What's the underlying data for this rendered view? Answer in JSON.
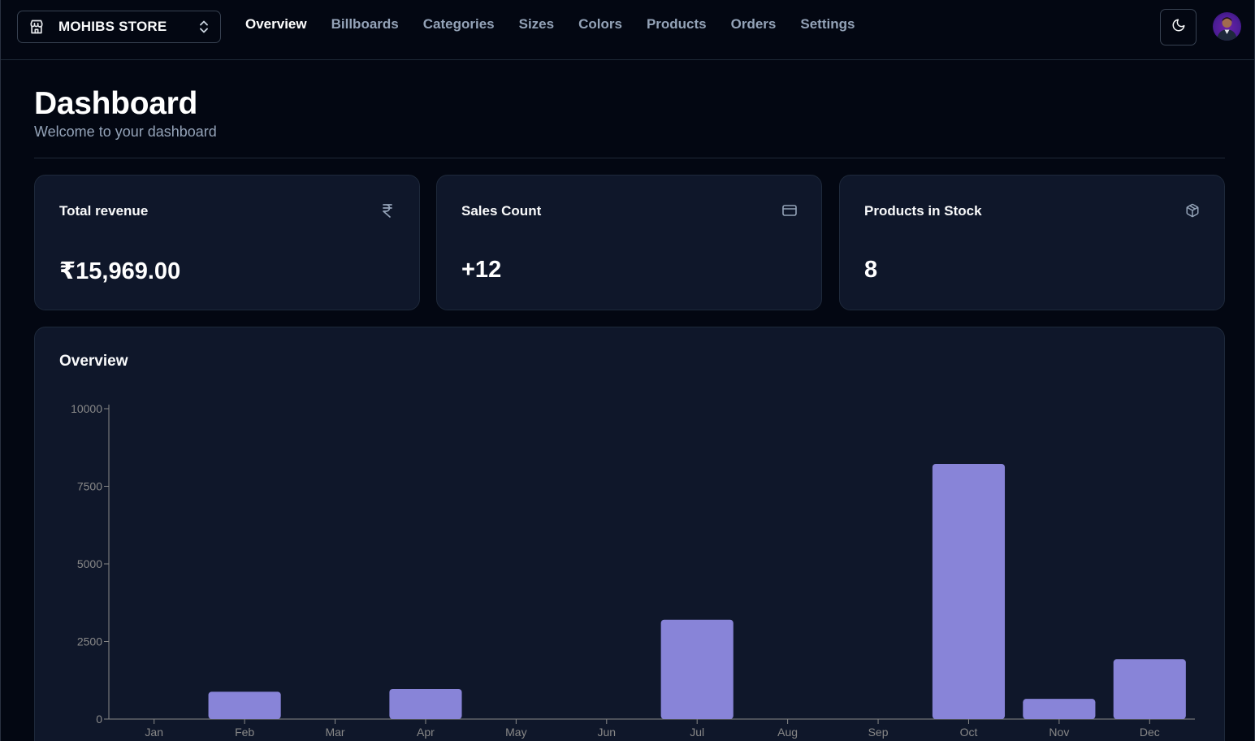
{
  "navbar": {
    "store_name": "MOHIBS STORE",
    "links": [
      {
        "label": "Overview",
        "active": true
      },
      {
        "label": "Billboards",
        "active": false
      },
      {
        "label": "Categories",
        "active": false
      },
      {
        "label": "Sizes",
        "active": false
      },
      {
        "label": "Colors",
        "active": false
      },
      {
        "label": "Products",
        "active": false
      },
      {
        "label": "Orders",
        "active": false
      },
      {
        "label": "Settings",
        "active": false
      }
    ],
    "theme_icon": "moon-icon",
    "avatar_icon": "user-avatar"
  },
  "page": {
    "title": "Dashboard",
    "subtitle": "Welcome to your dashboard"
  },
  "stats": [
    {
      "label": "Total revenue",
      "value": "₹15,969.00",
      "icon": "rupee-icon"
    },
    {
      "label": "Sales Count",
      "value": "+12",
      "icon": "credit-card-icon"
    },
    {
      "label": "Products in Stock",
      "value": "8",
      "icon": "package-icon"
    }
  ],
  "overview": {
    "title": "Overview"
  },
  "colors": {
    "background": "#030712",
    "card": "#0f172a",
    "bar": "#8884d8",
    "muted_text": "#94a3b8"
  },
  "chart_data": {
    "type": "bar",
    "categories": [
      "Jan",
      "Feb",
      "Mar",
      "Apr",
      "May",
      "Jun",
      "Jul",
      "Aug",
      "Sep",
      "Oct",
      "Nov",
      "Dec"
    ],
    "values": [
      0,
      880,
      0,
      970,
      0,
      0,
      3200,
      0,
      0,
      8220,
      650,
      1930
    ],
    "ylim": [
      0,
      10000
    ],
    "yticks": [
      0,
      2500,
      5000,
      7500,
      10000
    ],
    "grid": false,
    "legend": "none"
  }
}
